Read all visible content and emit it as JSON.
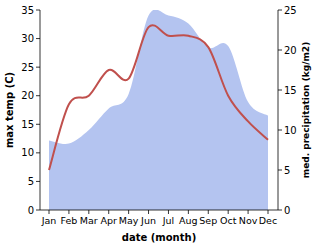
{
  "chart_data": {
    "type": "line",
    "x_label": "date (month)",
    "y_label": "max temp (C)",
    "y2_label": "med. precipitation (kg/m2)",
    "categories": [
      "Jan",
      "Feb",
      "Mar",
      "Apr",
      "May",
      "Jun",
      "Jul",
      "Aug",
      "Sep",
      "Oct",
      "Nov",
      "Dec"
    ],
    "series": [
      {
        "type": "area",
        "axis": "y2",
        "color": "#b4c4f0",
        "values": [
          8.7,
          8.3,
          10.0,
          12.7,
          14.5,
          24.3,
          24.3,
          23.3,
          20.3,
          20.5,
          13.5,
          11.8
        ]
      },
      {
        "type": "line",
        "color": "#c0504d",
        "values": [
          7.0,
          18.5,
          20.0,
          24.5,
          23.0,
          32.0,
          30.5,
          30.5,
          28.5,
          20.0,
          15.5,
          12.3
        ]
      }
    ],
    "ylim": [
      0,
      35
    ],
    "yticks": [
      0,
      5,
      10,
      15,
      20,
      25,
      30,
      35
    ],
    "y2lim": [
      0,
      25
    ],
    "y2ticks": [
      0,
      5,
      10,
      15,
      20,
      25
    ],
    "grid": false
  }
}
